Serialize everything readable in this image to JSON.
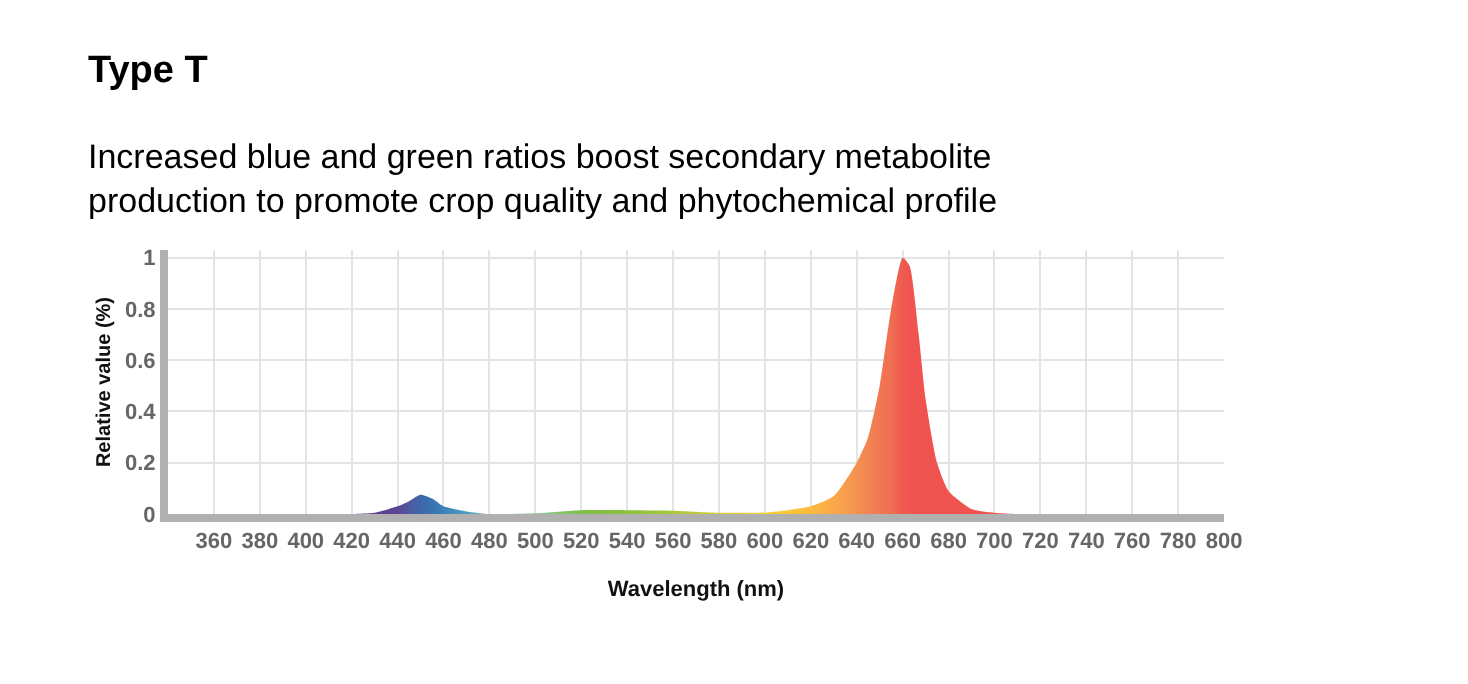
{
  "chart_data": {
    "type": "area",
    "title": "Type T",
    "subtitle": "Increased blue and green ratios boost secondary metabolite\nproduction to promote crop quality and phytochemical profile",
    "xlabel": "Wavelength (nm)",
    "ylabel": "Relative value (%)",
    "x": [
      340,
      380,
      420,
      430,
      440,
      445,
      450,
      455,
      460,
      470,
      480,
      500,
      520,
      540,
      560,
      580,
      600,
      610,
      620,
      630,
      640,
      645,
      650,
      655,
      660,
      663,
      667,
      670,
      675,
      680,
      690,
      700,
      710,
      760,
      800
    ],
    "values": [
      0,
      0,
      0,
      0.005,
      0.03,
      0.05,
      0.075,
      0.06,
      0.03,
      0.01,
      0,
      0.003,
      0.015,
      0.015,
      0.013,
      0.005,
      0.006,
      0.015,
      0.03,
      0.07,
      0.2,
      0.3,
      0.5,
      0.8,
      1.0,
      0.97,
      0.7,
      0.45,
      0.2,
      0.09,
      0.02,
      0.005,
      0,
      0,
      0
    ],
    "colors": [
      "#5a3f8f",
      "#5a3f8f",
      "#5a3f8f",
      "#5a3f8f",
      "#5b4596",
      "#4f5aa0",
      "#3f66a8",
      "#3a73b0",
      "#3b82b8",
      "#4b9ec0",
      "#6bb8c4",
      "#8cc8a0",
      "#7fbf4a",
      "#8cc03c",
      "#a8c83a",
      "#d2cf3a",
      "#f2d23c",
      "#f8c53c",
      "#fcba3c",
      "#fba84a",
      "#f49250",
      "#f18452",
      "#f17852",
      "#f06e52",
      "#ef5a50",
      "#ef5550",
      "#ef5350",
      "#ef5350",
      "#ef5350",
      "#ef5350",
      "#ef5350",
      "#ef5350",
      "#ef5350",
      "#ef5350",
      "#ef5350"
    ],
    "xlim": [
      340,
      800
    ],
    "ylim": [
      0,
      1.03
    ],
    "xticks": [
      360,
      380,
      400,
      420,
      440,
      460,
      480,
      500,
      520,
      540,
      560,
      580,
      600,
      620,
      640,
      660,
      680,
      700,
      720,
      740,
      760,
      780,
      800
    ],
    "yticks": [
      0,
      0.2,
      0.4,
      0.6,
      0.8,
      1
    ],
    "grid": true
  }
}
